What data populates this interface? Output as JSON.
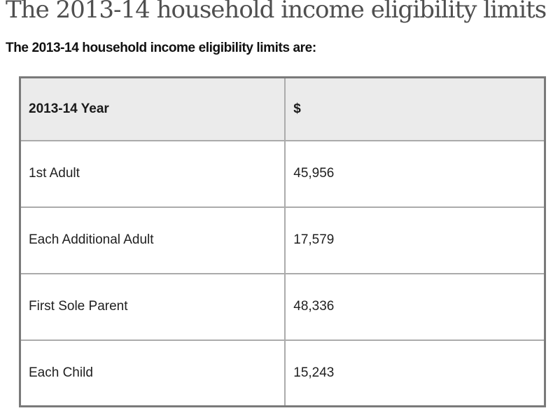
{
  "page": {
    "title": "The 2013-14 household income eligibility limits",
    "intro": "The 2013-14 household income eligibility limits are:"
  },
  "table": {
    "columns": [
      "2013-14 Year",
      "$"
    ],
    "rows": [
      {
        "label": "1st Adult",
        "value": "45,956"
      },
      {
        "label": "Each Additional Adult",
        "value": "17,579"
      },
      {
        "label": "First Sole Parent",
        "value": "48,336"
      },
      {
        "label": "Each Child",
        "value": "15,243"
      }
    ]
  },
  "colors": {
    "title_text": "#4f4f4f",
    "body_text": "#1f1f1f",
    "header_bg": "#ebebeb",
    "outer_border": "#7a7a7a",
    "inner_border": "#ababab",
    "page_bg": "#ffffff"
  }
}
